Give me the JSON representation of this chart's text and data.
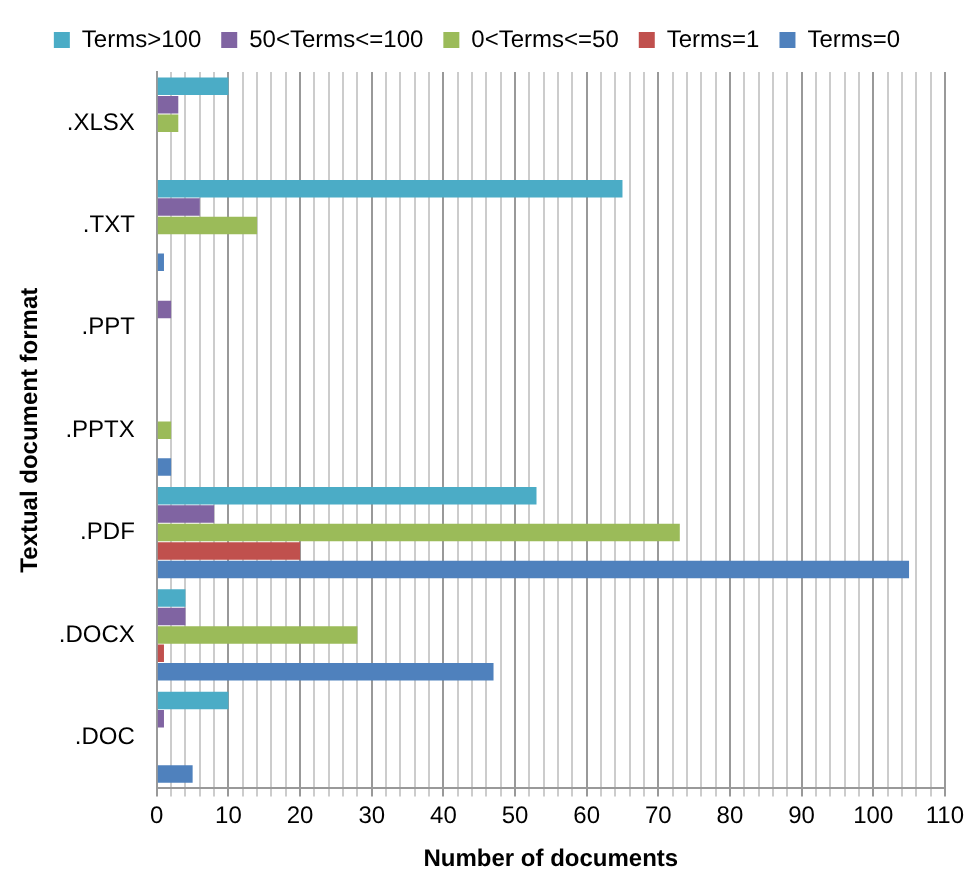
{
  "chart_data": {
    "type": "bar",
    "orientation": "horizontal",
    "xlabel": "Number of documents",
    "ylabel": "Textual document format",
    "categories": [
      ".XLSX",
      ".TXT",
      ".PPT",
      ".PPTX",
      ".PDF",
      ".DOCX",
      ".DOC"
    ],
    "series": [
      {
        "name": "Terms>100",
        "color": "#4bacc6",
        "values": [
          10,
          65,
          0,
          0,
          53,
          4,
          10
        ]
      },
      {
        "name": "50<Terms<=100",
        "color": "#8064a2",
        "values": [
          3,
          6,
          2,
          0,
          8,
          4,
          1
        ]
      },
      {
        "name": "0<Terms<=50",
        "color": "#9bbb59",
        "values": [
          3,
          14,
          0,
          2,
          73,
          28,
          0
        ]
      },
      {
        "name": "Terms=1",
        "color": "#c0504d",
        "values": [
          0,
          0,
          0,
          0,
          20,
          1,
          0
        ]
      },
      {
        "name": "Terms=0",
        "color": "#4f81bd",
        "values": [
          0,
          1,
          0,
          2,
          105,
          47,
          5
        ]
      }
    ],
    "xlim": [
      0,
      110
    ],
    "xticks": [
      0,
      {
        "value": 2,
        "label": null
      },
      {
        "value": 4,
        "label": null
      },
      {
        "value": 6,
        "label": null
      },
      {
        "value": 8,
        "label": null
      },
      10,
      {
        "value": 12,
        "label": null
      },
      {
        "value": 14,
        "label": null
      },
      {
        "value": 16,
        "label": null
      },
      {
        "value": 18,
        "label": null
      },
      20,
      {
        "value": 22,
        "label": null
      },
      {
        "value": 24,
        "label": null
      },
      {
        "value": 26,
        "label": null
      },
      {
        "value": 28,
        "label": null
      },
      30,
      {
        "value": 32,
        "label": null
      },
      {
        "value": 34,
        "label": null
      },
      {
        "value": 36,
        "label": null
      },
      {
        "value": 38,
        "label": null
      },
      40,
      {
        "value": 42,
        "label": null
      },
      {
        "value": 44,
        "label": null
      },
      {
        "value": 46,
        "label": null
      },
      {
        "value": 48,
        "label": null
      },
      50,
      {
        "value": 52,
        "label": null
      },
      {
        "value": 54,
        "label": null
      },
      {
        "value": 56,
        "label": null
      },
      {
        "value": 58,
        "label": null
      },
      60,
      {
        "value": 62,
        "label": null
      },
      {
        "value": 64,
        "label": null
      },
      {
        "value": 66,
        "label": null
      },
      {
        "value": 68,
        "label": null
      },
      70,
      {
        "value": 72,
        "label": null
      },
      {
        "value": 74,
        "label": null
      },
      {
        "value": 76,
        "label": null
      },
      {
        "value": 78,
        "label": null
      },
      80,
      {
        "value": 82,
        "label": null
      },
      {
        "value": 84,
        "label": null
      },
      {
        "value": 86,
        "label": null
      },
      {
        "value": 88,
        "label": null
      },
      90,
      {
        "value": 92,
        "label": null
      },
      {
        "value": 94,
        "label": null
      },
      {
        "value": 96,
        "label": null
      },
      {
        "value": 98,
        "label": null
      },
      100,
      {
        "value": 102,
        "label": null
      },
      {
        "value": 104,
        "label": null
      },
      {
        "value": 106,
        "label": null
      },
      {
        "value": 108,
        "label": null
      },
      110
    ],
    "grid": "x",
    "legend": "top"
  }
}
